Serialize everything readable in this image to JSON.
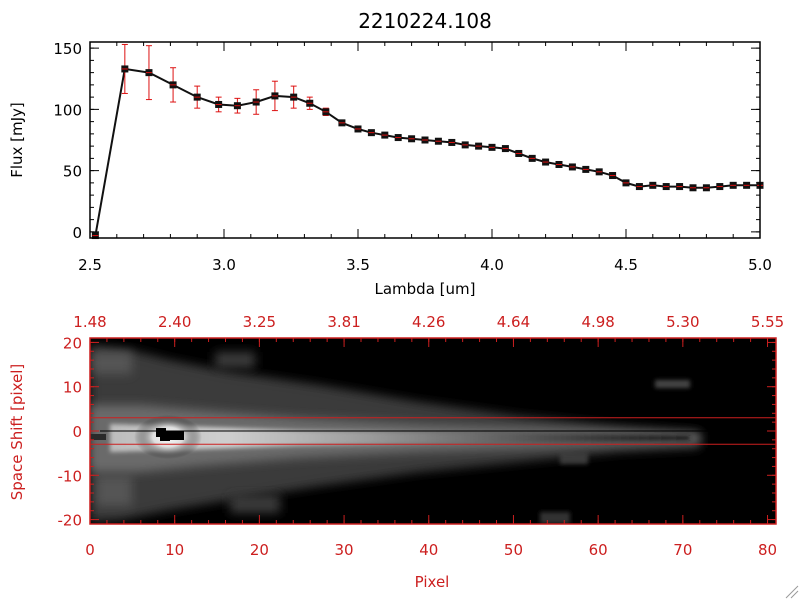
{
  "chart_data": [
    {
      "type": "line",
      "title": "2210224.108",
      "xlabel": "Lambda [um]",
      "ylabel": "Flux [mJy]",
      "xlim": [
        2.5,
        5.0
      ],
      "ylim": [
        -5,
        155
      ],
      "xticks": [
        "2.5",
        "3.0",
        "3.5",
        "4.0",
        "4.5",
        "5.0"
      ],
      "yticks": [
        "0",
        "50",
        "100",
        "150"
      ],
      "series": [
        {
          "name": "flux",
          "x": [
            2.52,
            2.63,
            2.72,
            2.81,
            2.9,
            2.98,
            3.05,
            3.12,
            3.19,
            3.26,
            3.32,
            3.38,
            3.44,
            3.5,
            3.55,
            3.6,
            3.65,
            3.7,
            3.75,
            3.8,
            3.85,
            3.9,
            3.95,
            4.0,
            4.05,
            4.1,
            4.15,
            4.2,
            4.25,
            4.3,
            4.35,
            4.4,
            4.45,
            4.5,
            4.55,
            4.6,
            4.65,
            4.7,
            4.75,
            4.8,
            4.85,
            4.9,
            4.95,
            5.0
          ],
          "y": [
            -3,
            133,
            130,
            120,
            110,
            104,
            103,
            106,
            111,
            110,
            105,
            98,
            89,
            84,
            81,
            79,
            77,
            76,
            75,
            74,
            73,
            71,
            70,
            69,
            68,
            64,
            60,
            57,
            55,
            53,
            51,
            49,
            46,
            40,
            37,
            38,
            37,
            37,
            36,
            36,
            37,
            38,
            38,
            38
          ],
          "err": [
            0,
            20,
            22,
            14,
            9,
            6,
            6,
            10,
            12,
            9,
            5,
            3,
            2,
            2,
            1,
            1,
            1,
            1,
            1,
            1,
            1,
            1,
            1,
            1,
            1,
            1,
            1,
            1,
            1,
            1,
            1,
            1,
            1,
            1,
            1,
            1,
            1,
            1,
            1,
            1,
            1,
            1,
            1,
            1
          ]
        }
      ]
    },
    {
      "type": "heatmap",
      "xlabel": "Pixel",
      "ylabel": "Space Shift [pixel]",
      "xlim": [
        0,
        81
      ],
      "ylim": [
        -21,
        21
      ],
      "xticks": [
        "0",
        "10",
        "20",
        "30",
        "40",
        "50",
        "60",
        "70",
        "80"
      ],
      "yticks": [
        "-20",
        "-10",
        "0",
        "10",
        "20"
      ],
      "top_ticks": [
        "1.48",
        "2.40",
        "3.25",
        "3.81",
        "4.26",
        "4.64",
        "4.98",
        "5.30",
        "5.55"
      ],
      "extraction_window": [
        -3,
        3
      ],
      "trace_center": 0
    }
  ],
  "colors": {
    "axes": "#000000",
    "errorbar": "#dd1111",
    "marker": "#111111",
    "red_axis": "#cc1f1f"
  }
}
